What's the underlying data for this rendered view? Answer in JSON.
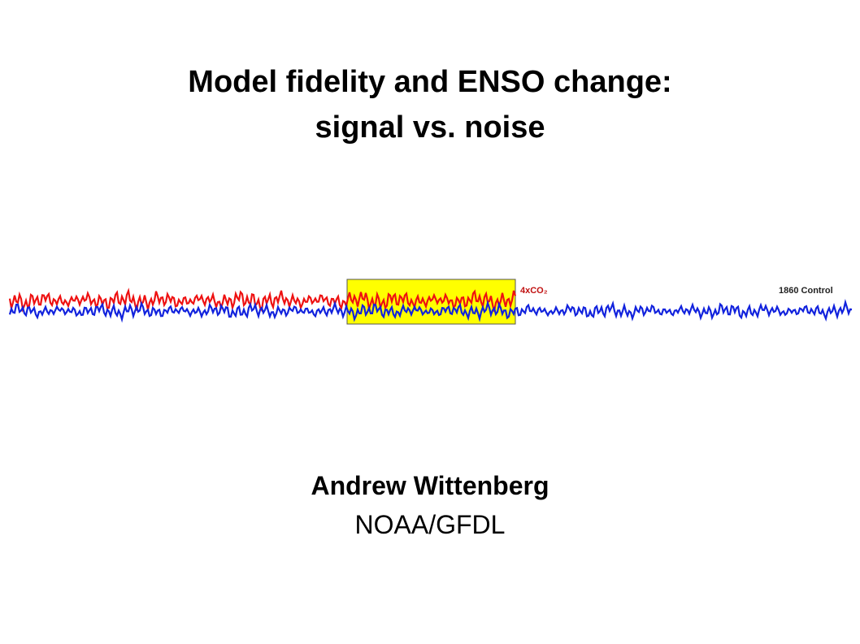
{
  "slide": {
    "title_line1": "Model fidelity and ENSO change:",
    "title_line2": "signal vs. noise",
    "figure": {
      "label_forced": "4xCO₂",
      "label_control": "1860 Control"
    },
    "author": "Andrew Wittenberg",
    "affiliation": "NOAA/GFDL"
  }
}
